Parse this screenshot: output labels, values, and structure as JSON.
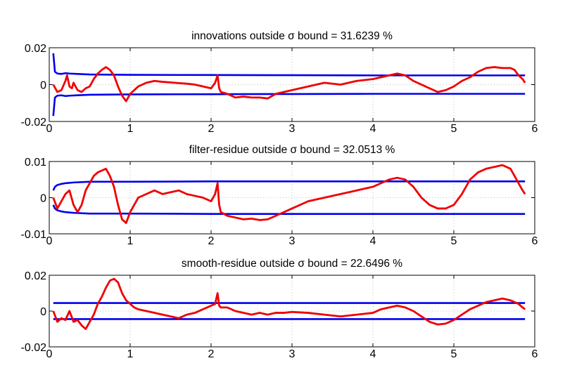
{
  "chart_data": [
    {
      "type": "line",
      "title": "innovations outside σ bound = 31.6239 %",
      "xlim": [
        0,
        6
      ],
      "ylim": [
        -0.02,
        0.02
      ],
      "xticks": [
        0,
        1,
        2,
        3,
        4,
        5,
        6
      ],
      "yticks": [
        -0.02,
        0,
        0.02
      ],
      "xtick_labels": [
        "0",
        "1",
        "2",
        "3",
        "4",
        "5",
        "6"
      ],
      "ytick_labels": [
        "-0.02",
        "0",
        "0.02"
      ],
      "grid": true,
      "colors": {
        "bound": "#0000ee",
        "residual": "#ee0000"
      },
      "series": [
        {
          "x": [
            0.05,
            0.07,
            0.1,
            0.15,
            0.2,
            0.25,
            0.35,
            0.5,
            1,
            2,
            3,
            4,
            5,
            5.88
          ],
          "values": [
            0.017,
            0.007,
            0.006,
            0.0058,
            0.0062,
            0.006,
            0.0058,
            0.0055,
            0.0053,
            0.0052,
            0.0051,
            0.005,
            0.005,
            0.005
          ]
        },
        {
          "x": [
            0.05,
            0.07,
            0.1,
            0.15,
            0.2,
            0.25,
            0.35,
            0.5,
            1,
            2,
            3,
            4,
            5,
            5.88
          ],
          "values": [
            -0.017,
            -0.007,
            -0.006,
            -0.0058,
            -0.0062,
            -0.006,
            -0.0058,
            -0.0055,
            -0.0053,
            -0.0052,
            -0.0051,
            -0.005,
            -0.005,
            -0.005
          ]
        },
        {
          "x": [
            0.05,
            0.1,
            0.15,
            0.2,
            0.22,
            0.25,
            0.28,
            0.3,
            0.35,
            0.4,
            0.45,
            0.5,
            0.55,
            0.6,
            0.65,
            0.7,
            0.75,
            0.8,
            0.85,
            0.9,
            0.95,
            1.0,
            1.05,
            1.1,
            1.2,
            1.3,
            1.4,
            1.5,
            1.6,
            1.7,
            1.8,
            1.9,
            2.0,
            2.05,
            2.08,
            2.1,
            2.12,
            2.2,
            2.3,
            2.4,
            2.5,
            2.6,
            2.7,
            2.8,
            2.9,
            3.0,
            3.2,
            3.4,
            3.6,
            3.8,
            4.0,
            4.1,
            4.2,
            4.3,
            4.4,
            4.5,
            4.6,
            4.7,
            4.8,
            4.9,
            5.0,
            5.1,
            5.2,
            5.3,
            5.4,
            5.5,
            5.6,
            5.7,
            5.75,
            5.8,
            5.85,
            5.88
          ],
          "values": [
            0.0,
            -0.004,
            -0.003,
            0.002,
            0.005,
            -0.001,
            -0.002,
            0.001,
            -0.003,
            -0.004,
            -0.002,
            -0.001,
            0.003,
            0.006,
            0.008,
            0.0095,
            0.008,
            0.005,
            -0.001,
            -0.006,
            -0.009,
            -0.005,
            -0.003,
            -0.001,
            0.001,
            0.002,
            0.0015,
            0.0012,
            0.0008,
            0.0005,
            0.0,
            -0.001,
            -0.002,
            0.001,
            0.005,
            -0.002,
            -0.004,
            -0.005,
            -0.007,
            -0.0065,
            -0.007,
            -0.007,
            -0.0075,
            -0.005,
            -0.004,
            -0.003,
            -0.001,
            0.001,
            0.0,
            0.002,
            0.003,
            0.004,
            0.005,
            0.006,
            0.005,
            0.002,
            0.0,
            -0.002,
            -0.004,
            -0.003,
            -0.001,
            0.002,
            0.004,
            0.007,
            0.009,
            0.0095,
            0.009,
            0.009,
            0.008,
            0.005,
            0.003,
            0.001
          ]
        }
      ]
    },
    {
      "type": "line",
      "title": "filter-residue outside σ bound = 32.0513 %",
      "xlim": [
        0,
        6
      ],
      "ylim": [
        -0.01,
        0.01
      ],
      "xticks": [
        0,
        1,
        2,
        3,
        4,
        5,
        6
      ],
      "yticks": [
        -0.01,
        0,
        0.01
      ],
      "xtick_labels": [
        "0",
        "1",
        "2",
        "3",
        "4",
        "5",
        "6"
      ],
      "ytick_labels": [
        "-0.01",
        "0",
        "0.01"
      ],
      "grid": true,
      "colors": {
        "bound": "#0000ee",
        "residual": "#ee0000"
      },
      "series": [
        {
          "x": [
            0.05,
            0.07,
            0.1,
            0.15,
            0.2,
            0.3,
            0.5,
            1,
            2,
            3,
            4,
            5,
            5.88
          ],
          "values": [
            0.002,
            0.003,
            0.0035,
            0.0038,
            0.004,
            0.0042,
            0.0044,
            0.0044,
            0.0045,
            0.0045,
            0.0045,
            0.0045,
            0.0045
          ]
        },
        {
          "x": [
            0.05,
            0.07,
            0.1,
            0.15,
            0.2,
            0.3,
            0.5,
            1,
            2,
            3,
            4,
            5,
            5.88
          ],
          "values": [
            -0.002,
            -0.003,
            -0.0035,
            -0.0038,
            -0.004,
            -0.0042,
            -0.0044,
            -0.0044,
            -0.0045,
            -0.0045,
            -0.0045,
            -0.0045,
            -0.0045
          ]
        },
        {
          "x": [
            0.05,
            0.1,
            0.15,
            0.2,
            0.25,
            0.3,
            0.35,
            0.4,
            0.45,
            0.5,
            0.55,
            0.6,
            0.65,
            0.7,
            0.75,
            0.8,
            0.85,
            0.9,
            0.95,
            1.0,
            1.05,
            1.1,
            1.2,
            1.3,
            1.4,
            1.5,
            1.6,
            1.7,
            1.8,
            1.9,
            2.0,
            2.05,
            2.08,
            2.1,
            2.12,
            2.2,
            2.3,
            2.4,
            2.5,
            2.6,
            2.7,
            2.8,
            2.9,
            3.0,
            3.2,
            3.4,
            3.6,
            3.8,
            4.0,
            4.1,
            4.2,
            4.3,
            4.4,
            4.5,
            4.6,
            4.7,
            4.8,
            4.9,
            5.0,
            5.1,
            5.2,
            5.3,
            5.4,
            5.5,
            5.6,
            5.7,
            5.75,
            5.8,
            5.85,
            5.88
          ],
          "values": [
            0.0,
            -0.003,
            -0.001,
            0.001,
            0.002,
            -0.002,
            -0.004,
            -0.002,
            0.002,
            0.004,
            0.006,
            0.007,
            0.0075,
            0.008,
            0.006,
            0.003,
            -0.002,
            -0.006,
            -0.007,
            -0.004,
            -0.002,
            0.0,
            0.001,
            0.002,
            0.001,
            0.0015,
            0.002,
            0.001,
            0.0005,
            0.0,
            -0.001,
            0.001,
            0.004,
            -0.002,
            -0.004,
            -0.005,
            -0.0055,
            -0.006,
            -0.0058,
            -0.0062,
            -0.006,
            -0.005,
            -0.004,
            -0.003,
            -0.001,
            0.0,
            0.001,
            0.002,
            0.003,
            0.004,
            0.005,
            0.0055,
            0.005,
            0.003,
            0.0,
            -0.002,
            -0.003,
            -0.003,
            -0.002,
            0.001,
            0.005,
            0.007,
            0.008,
            0.0085,
            0.009,
            0.008,
            0.006,
            0.004,
            0.002,
            0.001
          ]
        }
      ]
    },
    {
      "type": "line",
      "title": "smooth-residue outside σ bound = 22.6496 %",
      "xlim": [
        0,
        6
      ],
      "ylim": [
        -0.02,
        0.02
      ],
      "xticks": [
        0,
        1,
        2,
        3,
        4,
        5,
        6
      ],
      "yticks": [
        -0.02,
        0,
        0.02
      ],
      "xtick_labels": [
        "0",
        "1",
        "2",
        "3",
        "4",
        "5",
        "6"
      ],
      "ytick_labels": [
        "-0.02",
        "0",
        "0.02"
      ],
      "grid": true,
      "colors": {
        "bound": "#0000ee",
        "residual": "#ee0000"
      },
      "series": [
        {
          "x": [
            0.05,
            5.88
          ],
          "values": [
            0.0045,
            0.0045
          ]
        },
        {
          "x": [
            0.05,
            5.88
          ],
          "values": [
            -0.0045,
            -0.0045
          ]
        },
        {
          "x": [
            0.05,
            0.1,
            0.15,
            0.2,
            0.25,
            0.3,
            0.35,
            0.4,
            0.45,
            0.5,
            0.55,
            0.6,
            0.65,
            0.7,
            0.75,
            0.8,
            0.85,
            0.9,
            0.95,
            1.0,
            1.05,
            1.1,
            1.2,
            1.3,
            1.4,
            1.5,
            1.6,
            1.7,
            1.8,
            1.9,
            2.0,
            2.05,
            2.08,
            2.1,
            2.12,
            2.2,
            2.3,
            2.4,
            2.5,
            2.6,
            2.7,
            2.8,
            2.9,
            3.0,
            3.2,
            3.4,
            3.6,
            3.8,
            4.0,
            4.1,
            4.2,
            4.3,
            4.4,
            4.5,
            4.6,
            4.7,
            4.8,
            4.9,
            5.0,
            5.1,
            5.2,
            5.3,
            5.4,
            5.5,
            5.6,
            5.7,
            5.75,
            5.8,
            5.85,
            5.88
          ],
          "values": [
            0.0,
            -0.006,
            -0.004,
            -0.005,
            0.0,
            -0.006,
            -0.005,
            -0.008,
            -0.01,
            -0.006,
            -0.002,
            0.004,
            0.008,
            0.013,
            0.017,
            0.018,
            0.016,
            0.01,
            0.006,
            0.004,
            0.002,
            0.001,
            0.0,
            -0.001,
            -0.002,
            -0.003,
            -0.004,
            -0.002,
            -0.001,
            0.001,
            0.003,
            0.004,
            0.01,
            0.003,
            0.002,
            0.002,
            0.0,
            -0.001,
            -0.002,
            -0.001,
            -0.002,
            -0.001,
            -0.001,
            -0.0005,
            -0.001,
            -0.002,
            -0.003,
            -0.002,
            -0.001,
            0.001,
            0.002,
            0.003,
            0.002,
            0.0,
            -0.003,
            -0.006,
            -0.0075,
            -0.007,
            -0.005,
            -0.002,
            0.001,
            0.003,
            0.005,
            0.006,
            0.007,
            0.006,
            0.005,
            0.004,
            0.002,
            0.001
          ]
        }
      ]
    }
  ]
}
